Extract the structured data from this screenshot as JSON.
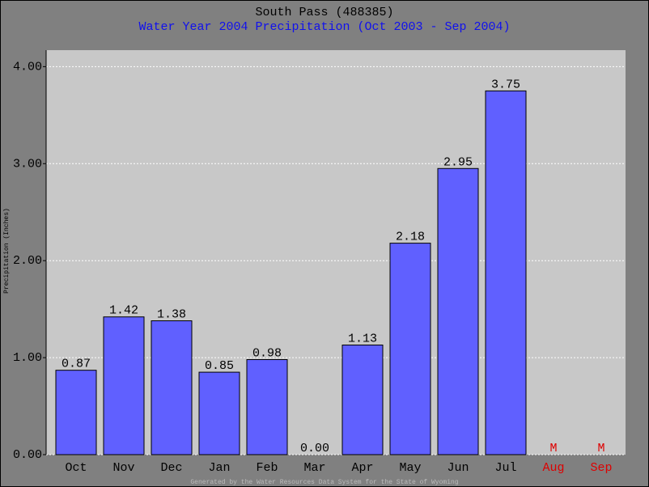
{
  "chart_data": {
    "type": "bar",
    "title": "South Pass (488385)",
    "subtitle": "Water Year 2004 Precipitation (Oct 2003 - Sep 2004)",
    "y_label": "Precipitation (Inches)",
    "footer": "Generated by the Water Resources Data System for the State of Wyoming",
    "categories": [
      "Oct",
      "Nov",
      "Dec",
      "Jan",
      "Feb",
      "Mar",
      "Apr",
      "May",
      "Jun",
      "Jul",
      "Aug",
      "Sep"
    ],
    "values": [
      0.87,
      1.42,
      1.38,
      0.85,
      0.98,
      0,
      1.13,
      2.18,
      2.95,
      3.75,
      null,
      null
    ],
    "value_labels": [
      "0.87",
      "1.42",
      "1.38",
      "0.85",
      "0.98",
      "0.00",
      "1.13",
      "2.18",
      "2.95",
      "3.75",
      "M",
      "M"
    ],
    "color": "#6060ff",
    "missing_color": "#dd0000",
    "ylim": [
      0,
      4.17
    ],
    "yticks": [
      {
        "value": 0,
        "label": "0.00"
      },
      {
        "value": 1,
        "label": "1.00"
      },
      {
        "value": 2,
        "label": "2.00"
      },
      {
        "value": 3,
        "label": "3.00"
      },
      {
        "value": 4,
        "label": "4.00"
      }
    ],
    "grid": true
  }
}
